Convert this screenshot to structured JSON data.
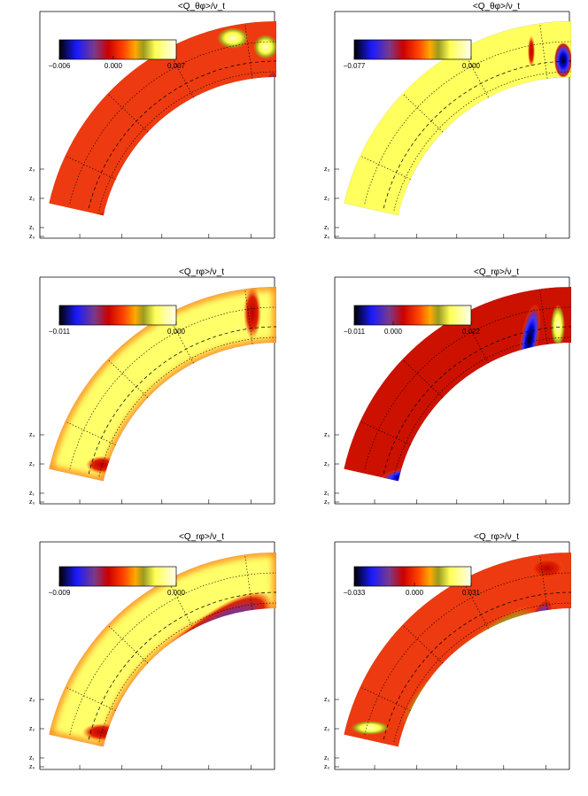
{
  "figure": {
    "panels": [
      {
        "id": "p1",
        "title": "<Q_θφ>/ν_t",
        "ticks": [
          "−0.006",
          "0.000",
          "0.007"
        ],
        "range": [
          -0.006,
          0.007
        ],
        "depth_labels": [
          "z₃",
          "z₂",
          "z₁",
          "z₀"
        ]
      },
      {
        "id": "p2",
        "title": "<Q_θφ>/ν_t",
        "ticks": [
          "−0.077",
          "0.000"
        ],
        "range": [
          -0.077,
          0.0
        ],
        "depth_labels": [
          "z₃",
          "z₂",
          "z₁",
          "z₀"
        ]
      },
      {
        "id": "p3",
        "title": "<Q_rφ>/ν_t",
        "ticks": [
          "−0.011",
          "0.000"
        ],
        "range": [
          -0.011,
          0.0
        ],
        "depth_labels": [
          "z₃",
          "z₂",
          "z₁",
          "z₀"
        ]
      },
      {
        "id": "p4",
        "title": "<Q_rφ>/ν_t",
        "ticks": [
          "−0.011",
          "0.000",
          "0.022"
        ],
        "range": [
          -0.011,
          0.022
        ],
        "depth_labels": [
          "z₃",
          "z₂",
          "z₁",
          "z₀"
        ]
      },
      {
        "id": "p5",
        "title": "<Q_rφ>/ν_t",
        "ticks": [
          "−0.009",
          "0.000"
        ],
        "range": [
          -0.009,
          0.0
        ],
        "depth_labels": [
          "z₃",
          "z₂",
          "z₁",
          "z₀"
        ]
      },
      {
        "id": "p6",
        "title": "<Q_rφ>/ν_t",
        "ticks": [
          "−0.033",
          "0.000",
          "0.031"
        ],
        "range": [
          -0.033,
          0.031
        ],
        "depth_labels": [
          "z₃",
          "z₂",
          "z₁",
          "z₀"
        ]
      }
    ],
    "colormap": [
      "#000000",
      "#1a1aff",
      "#7a4aa0",
      "#cc0000",
      "#ff3300",
      "#ffaa00",
      "#9a9a20",
      "#ffff55",
      "#ffffee"
    ]
  }
}
